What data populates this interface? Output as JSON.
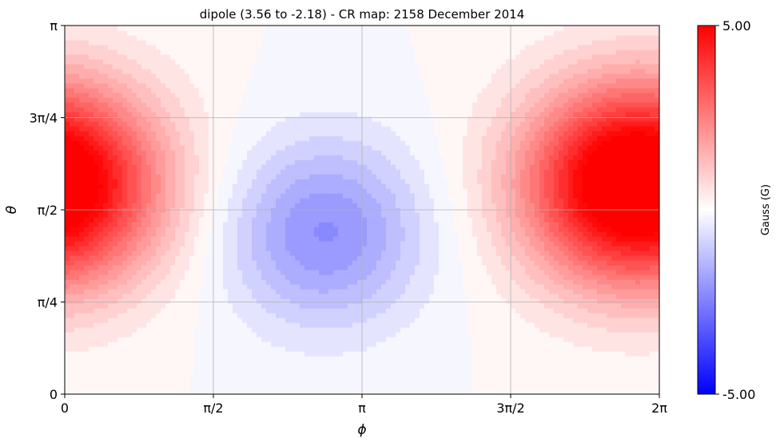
{
  "chart_data": {
    "type": "heatmap",
    "title": "dipole (3.56 to -2.18) - CR map: 2158 December 2014",
    "xlabel": "ϕ",
    "ylabel": "θ",
    "xlim": [
      0,
      6.283185
    ],
    "ylim": [
      0,
      3.141593
    ],
    "x_ticks": [
      0,
      1.570796,
      3.141593,
      4.712389,
      6.283185
    ],
    "x_tick_labels": [
      "0",
      "π/2",
      "π",
      "3π/2",
      "2π"
    ],
    "y_ticks": [
      0,
      0.785398,
      1.570796,
      2.356194,
      3.141593
    ],
    "y_tick_labels": [
      "0",
      "π/4",
      "π/2",
      "3π/4",
      "π"
    ],
    "grid": true,
    "field_range": [
      3.56,
      -2.18
    ],
    "field_extrema": [
      {
        "kind": "max",
        "phi": 5.86,
        "theta": 1.79,
        "value": 3.56
      },
      {
        "kind": "max",
        "phi": 0.0,
        "theta": 1.79,
        "value": 3.2
      },
      {
        "kind": "min",
        "phi": 2.75,
        "theta": 1.38,
        "value": -2.18
      }
    ],
    "colorbar": {
      "label": "Gauss (G)",
      "vmin": -5.0,
      "vmax": 5.0,
      "tick_labels": [
        "5.00",
        "-5.00"
      ],
      "colormap": [
        "#0000ff",
        "#ffffff",
        "#ff0000"
      ]
    }
  }
}
